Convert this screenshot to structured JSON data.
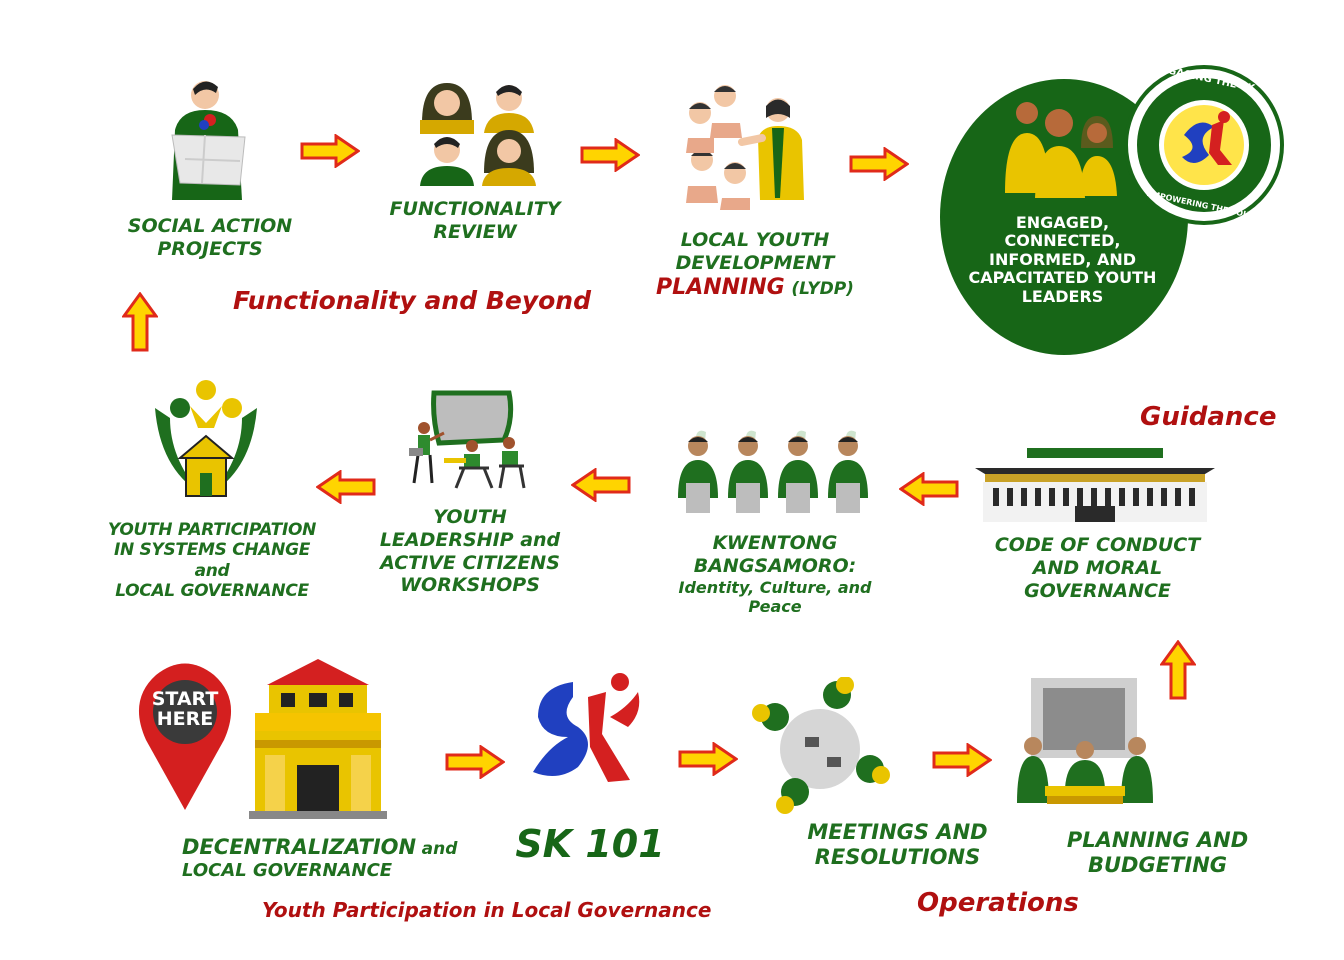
{
  "colors": {
    "green": "#1f6f1f",
    "dark_green": "#176617",
    "red": "#b01010",
    "arrow_yellow": "#ffd400",
    "arrow_red": "#e02a1a"
  },
  "top_row": {
    "social_action": "SOCIAL ACTION\nPROJECTS",
    "functionality_review": "FUNCTIONALITY\nREVIEW",
    "lydp_line1": "LOCAL YOUTH",
    "lydp_line2": "DEVELOPMENT",
    "lydp_planning": "PLANNING",
    "lydp_abbr": "(LYDP)",
    "section_title": "Functionality and Beyond"
  },
  "badge": {
    "text": "ENGAGED,\nCONNECTED,\nINFORMED, AND\nCAPACITATED YOUTH\nLEADERS",
    "ring_top": "ENGAGING THE SK",
    "ring_bottom": "EMPOWERING THE YOUTH"
  },
  "middle_row": {
    "systems_change": "YOUTH PARTICIPATION\nIN SYSTEMS CHANGE and\nLOCAL GOVERNANCE",
    "workshops": "YOUTH\nLEADERSHIP and\nACTIVE CITIZENS\nWORKSHOPS",
    "kwentong_title": "KWENTONG\nBANGSAMORO:",
    "kwentong_sub": "Identity, Culture, and\nPeace",
    "code_of_conduct": "CODE OF CONDUCT\nAND MORAL\nGOVERNANCE",
    "guidance": "Guidance"
  },
  "bottom_row": {
    "pin_text": "START\nHERE",
    "decentralization_1": "DECENTRALIZATION",
    "decentralization_and": "and",
    "decentralization_2": "LOCAL GOVERNANCE",
    "sk101": "SK 101",
    "meetings": "MEETINGS AND\nRESOLUTIONS",
    "planning": "PLANNING AND\nBUDGETING",
    "youth_participation": "Youth Participation in Local Governance",
    "operations": "Operations"
  }
}
